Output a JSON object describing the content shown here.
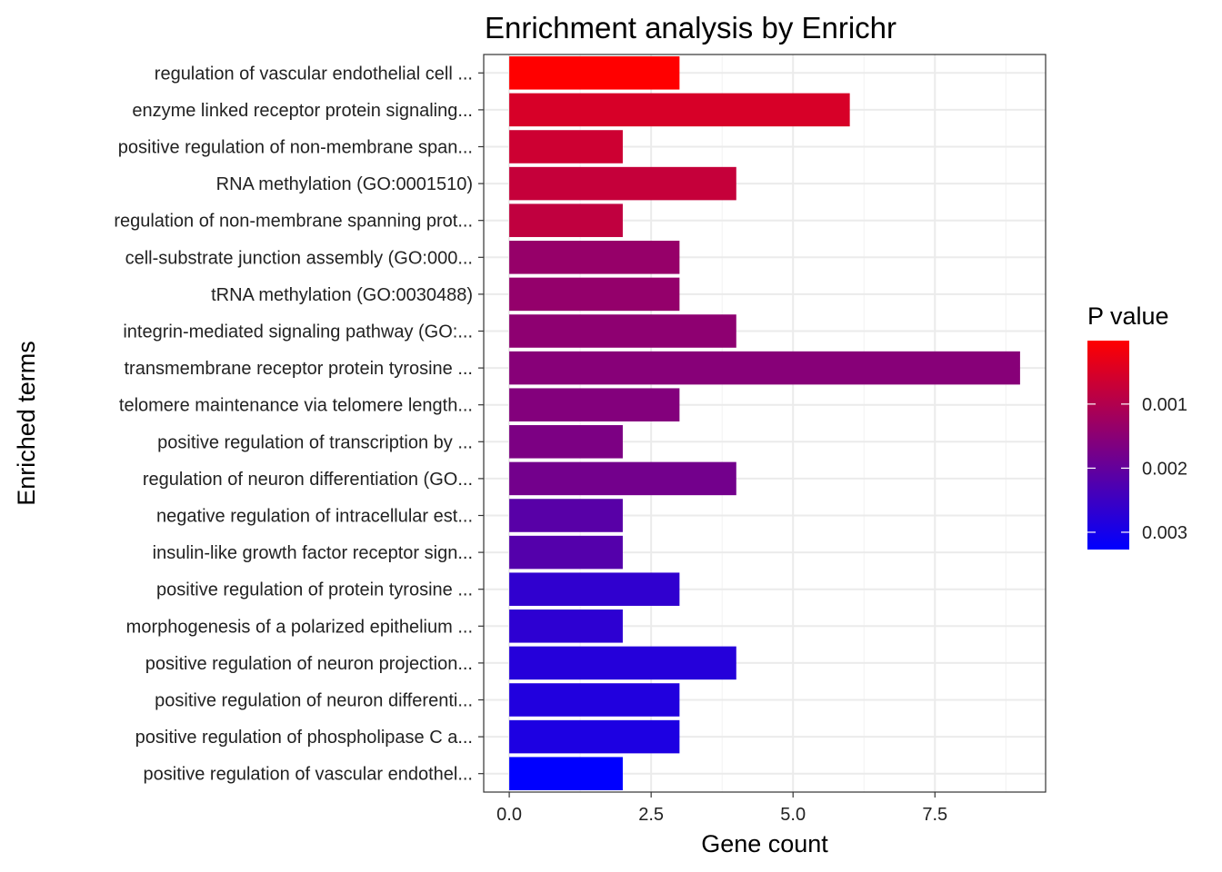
{
  "chart_data": {
    "type": "bar",
    "orientation": "horizontal",
    "title": "Enrichment analysis by Enrichr",
    "xlabel": "Gene count",
    "ylabel": "Enriched terms",
    "xlim": [
      -0.45,
      9.45
    ],
    "x_ticks": [
      0,
      2.5,
      5,
      7.5
    ],
    "x_tick_labels": [
      "0.0",
      "2.5",
      "5.0",
      "7.5"
    ],
    "grid": true,
    "legend": {
      "title": "P value",
      "position": "right",
      "color_low": "#ff0000",
      "color_high": "#0000ff",
      "range": [
        1e-05,
        0.00327
      ],
      "ticks": [
        0.001,
        0.002,
        0.003
      ],
      "tick_labels": [
        "0.001",
        "0.002",
        "0.003"
      ]
    },
    "categories": [
      "regulation of vascular endothelial cell ...",
      "enzyme linked receptor protein signaling...",
      "positive regulation of non-membrane span...",
      "RNA methylation (GO:0001510)",
      "regulation of non-membrane spanning prot...",
      "cell-substrate junction assembly (GO:000...",
      "tRNA methylation (GO:0030488)",
      "integrin-mediated signaling pathway (GO:...",
      "transmembrane receptor protein tyrosine ...",
      "telomere maintenance via telomere length...",
      "positive regulation of transcription by ...",
      "regulation of neuron differentiation (GO...",
      "negative regulation of intracellular est...",
      "insulin-like growth factor receptor sign...",
      "positive regulation of protein tyrosine ...",
      "morphogenesis of a polarized epithelium ...",
      "positive regulation of neuron projection...",
      "positive regulation of neuron differenti...",
      "positive regulation of phospholipase C a...",
      "positive regulation of vascular endothel..."
    ],
    "values": [
      3,
      6,
      2,
      4,
      2,
      3,
      3,
      4,
      9,
      3,
      2,
      4,
      2,
      2,
      3,
      2,
      4,
      3,
      3,
      2
    ],
    "p_values": [
      1e-05,
      0.00052,
      0.00065,
      0.00075,
      0.00082,
      0.00135,
      0.00138,
      0.00145,
      0.00155,
      0.0016,
      0.00168,
      0.0018,
      0.00215,
      0.0022,
      0.00265,
      0.0027,
      0.0028,
      0.00285,
      0.0029,
      0.00327
    ]
  }
}
